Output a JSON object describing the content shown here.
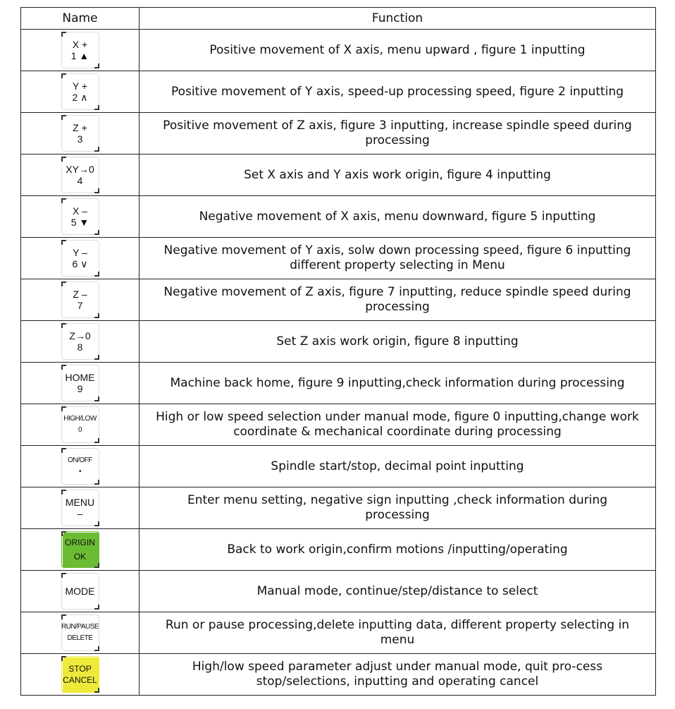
{
  "header": {
    "name": "Name",
    "function": "Function"
  },
  "colors": {
    "origin_key": "#6cbb35",
    "stop_key": "#efe93a"
  },
  "rows": [
    {
      "key": [
        "X +",
        "1 ▲"
      ],
      "style": "",
      "function": "Positive movement of X axis, menu upward , figure 1 inputting"
    },
    {
      "key": [
        "Y +",
        "2 ∧"
      ],
      "style": "",
      "function": "Positive movement of Y axis, speed-up processing speed, figure 2 inputting"
    },
    {
      "key": [
        "Z +",
        "3"
      ],
      "style": "",
      "function": "Positive movement of Z axis, figure 3 inputting, increase spindle speed during processing"
    },
    {
      "key": [
        "XY→0",
        "4"
      ],
      "style": "",
      "function": "Set X axis and Y axis work origin, figure 4 inputting"
    },
    {
      "key": [
        "X –",
        "5 ▼"
      ],
      "style": "",
      "function": "Negative movement of X axis, menu downward, figure 5 inputting"
    },
    {
      "key": [
        "Y –",
        "6 ∨"
      ],
      "style": "",
      "function": "Negative movement of Y axis, solw down processing speed, figure 6 inputting different property selecting in Menu"
    },
    {
      "key": [
        "Z –",
        "7"
      ],
      "style": "",
      "function": "Negative movement of Z axis, figure 7 inputting, reduce spindle speed during processing"
    },
    {
      "key": [
        "Z→0",
        "8"
      ],
      "style": "",
      "function": "Set Z axis work origin, figure 8 inputting"
    },
    {
      "key": [
        "HOME",
        "9"
      ],
      "style": "",
      "function": "Machine back home, figure 9 inputting,check information during processing"
    },
    {
      "key": [
        "HIGH/LOW",
        "0"
      ],
      "style": "small",
      "function": "High or low speed selection under manual mode, figure 0 inputting,change work coordinate & mechanical coordinate during processing"
    },
    {
      "key": [
        "ON/OFF",
        "•"
      ],
      "style": "small",
      "function": "Spindle start/stop, decimal point inputting"
    },
    {
      "key": [
        "MENU",
        "–"
      ],
      "style": "",
      "function": "Enter menu setting, negative sign inputting ,check information during processing"
    },
    {
      "key": [
        "ORIGIN",
        "OK"
      ],
      "style": "green",
      "function": "Back to work origin,confirm motions /inputting/operating"
    },
    {
      "key": [
        "MODE",
        ""
      ],
      "style": "",
      "function": "Manual mode, continue/step/distance to select"
    },
    {
      "key": [
        "RUN/PAUSE",
        "DELETE"
      ],
      "style": "small",
      "function": "Run or pause processing,delete inputting data, different property selecting in menu"
    },
    {
      "key": [
        "STOP",
        "CANCEL"
      ],
      "style": "yellow",
      "function": "High/low speed parameter adjust under manual mode, quit pro-cess stop/selections, inputting and operating cancel"
    }
  ]
}
